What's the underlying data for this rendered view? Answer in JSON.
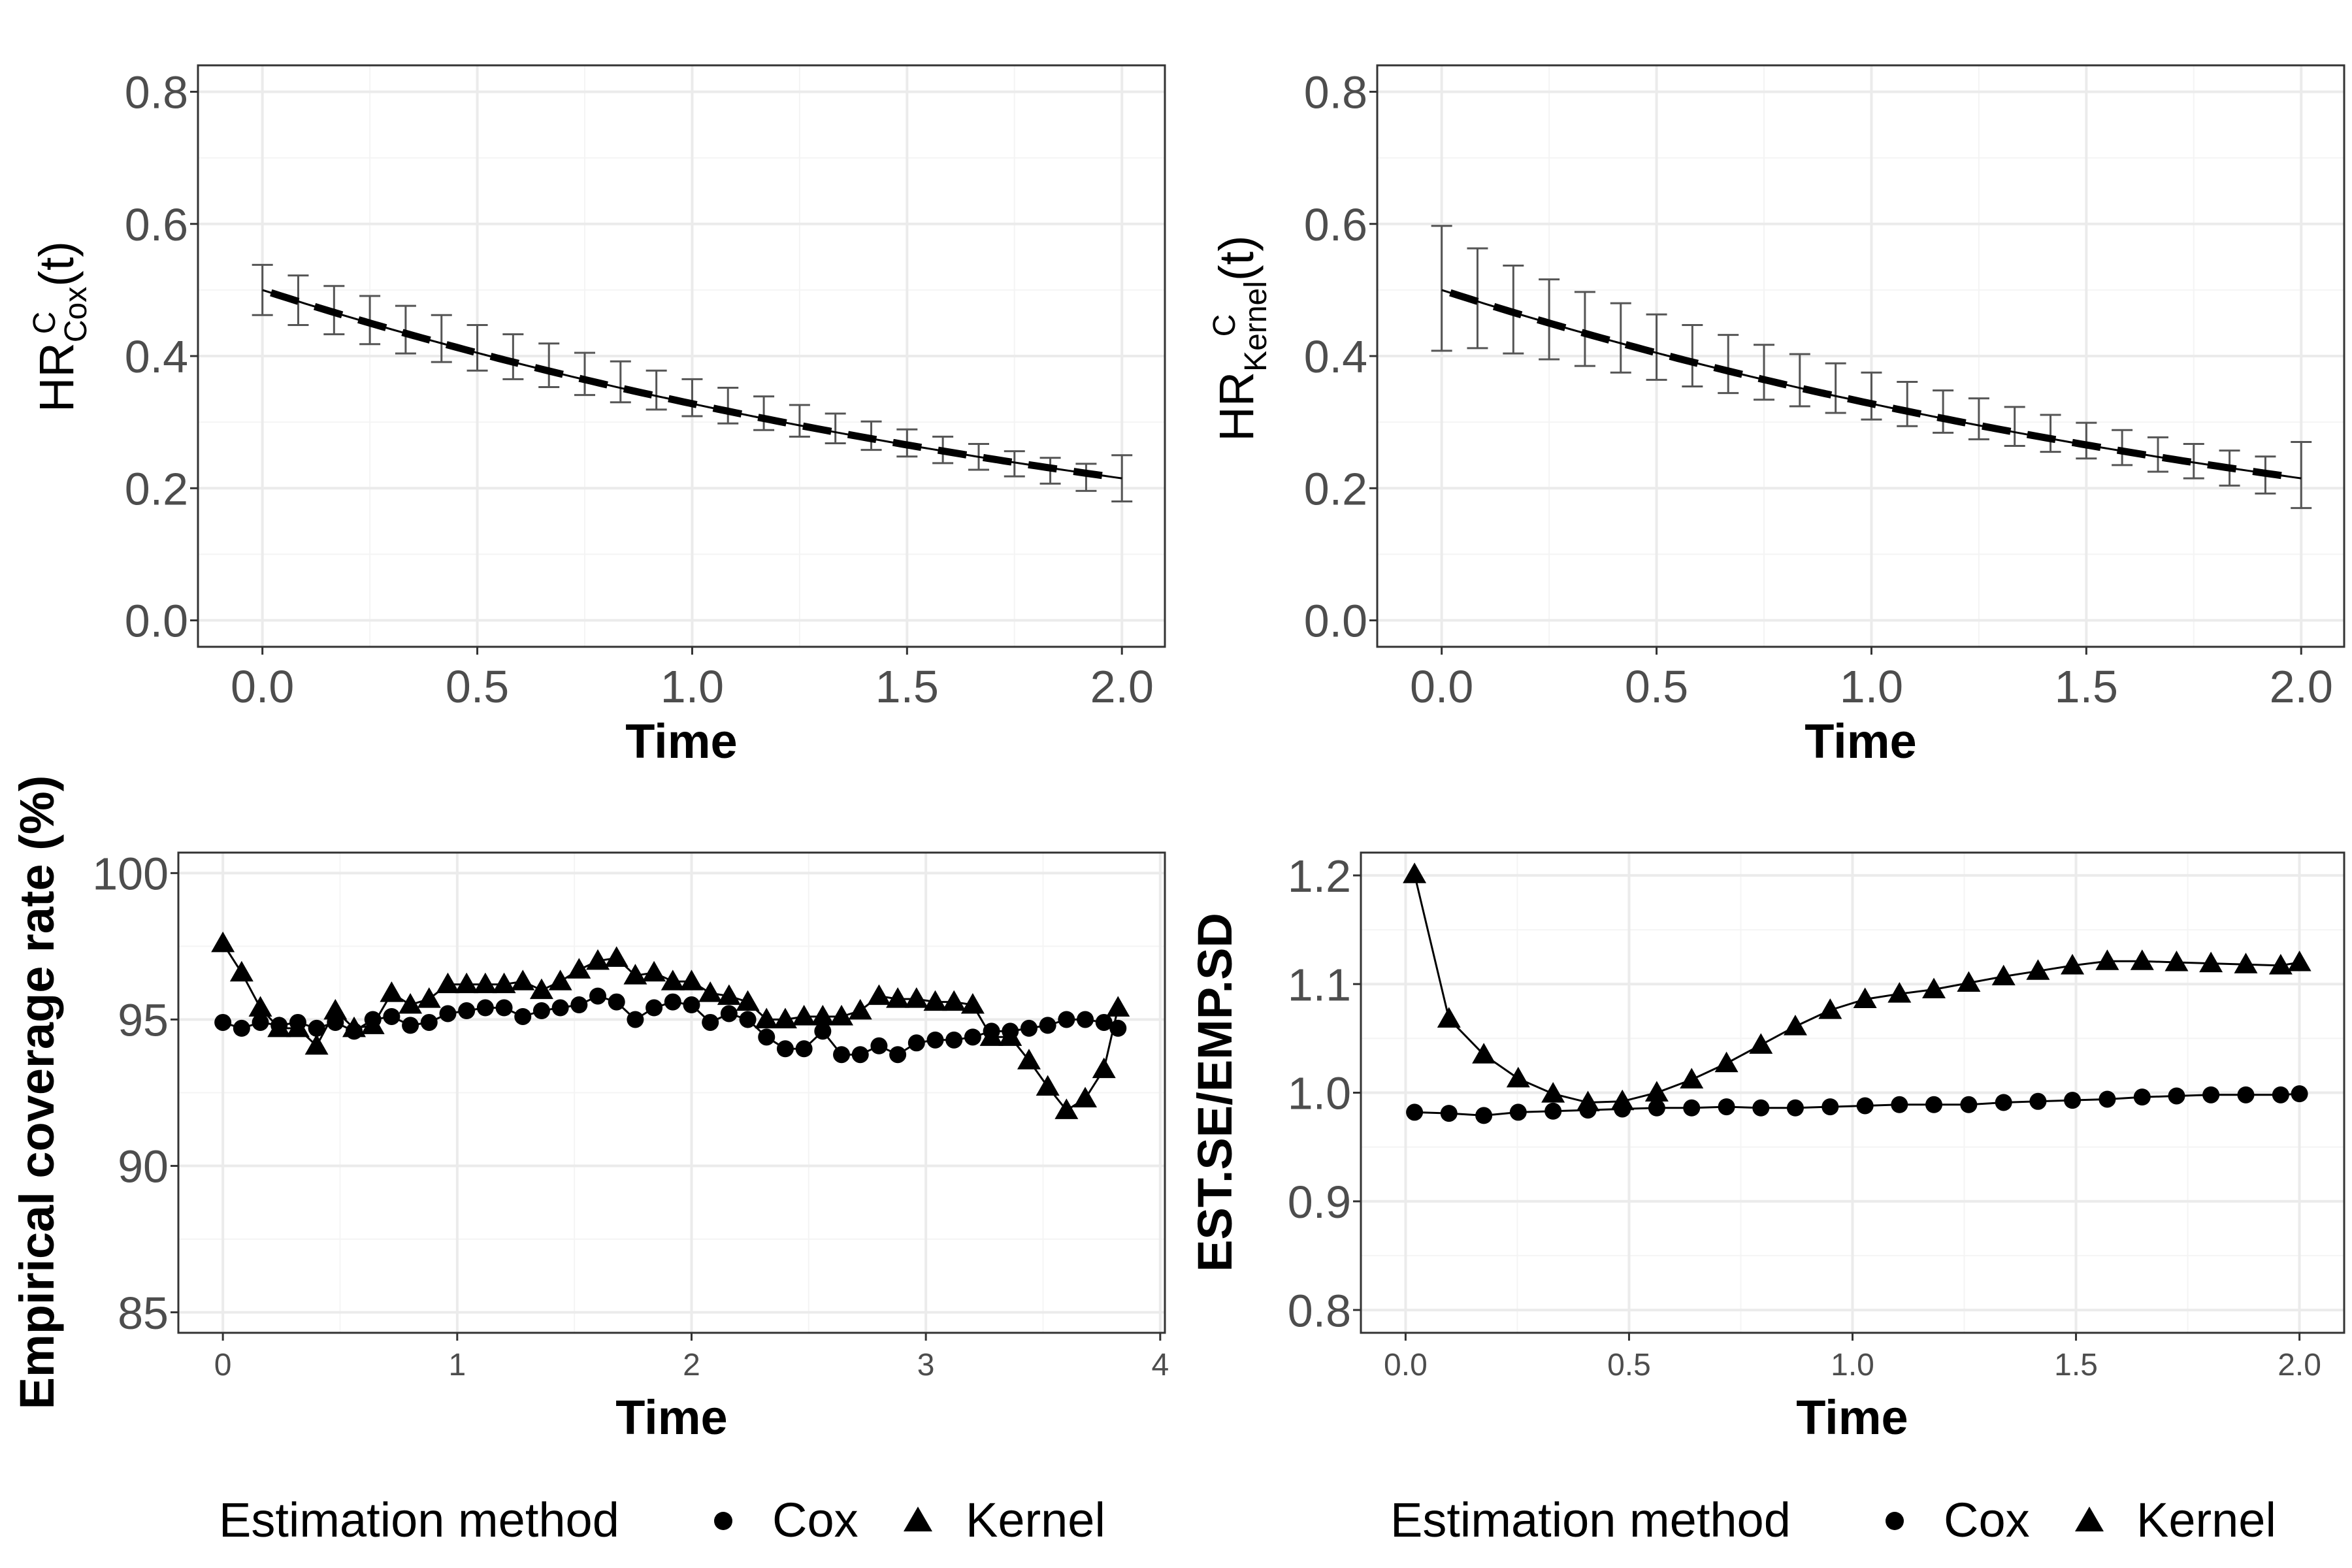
{
  "colors": {
    "grid_major": "#ebebeb",
    "grid_minor": "#f4f4f4",
    "panel_border": "#333333",
    "tick_text": "#4d4d4d",
    "ink": "#000000",
    "errorbar": "#555555"
  },
  "chart_data": [
    {
      "id": "hr-cox",
      "type": "line",
      "ylabel_main": "HR",
      "ylabel_sup": "C",
      "ylabel_sub": "Cox",
      "ylabel_tail": "(t)",
      "xlabel": "Time",
      "xlim": [
        -0.15,
        2.1
      ],
      "ylim": [
        -0.04,
        0.84
      ],
      "x_ticks": [
        0.0,
        0.5,
        1.0,
        1.5,
        2.0
      ],
      "x_tick_labels": [
        "0.0",
        "0.5",
        "1.0",
        "1.5",
        "2.0"
      ],
      "y_ticks": [
        0.0,
        0.2,
        0.4,
        0.6,
        0.8
      ],
      "y_tick_labels": [
        "0.0",
        "0.2",
        "0.4",
        "0.6",
        "0.8"
      ],
      "true_curve": {
        "name": "true",
        "start": 0.5,
        "end": 0.215,
        "x_range": [
          0.0,
          2.0
        ]
      },
      "estimate_curve": {
        "name": "estimate",
        "start": 0.5,
        "end": 0.215,
        "x_range": [
          0.02,
          1.98
        ]
      },
      "error_bars": {
        "x": [
          0.0,
          0.0833,
          0.1667,
          0.25,
          0.3333,
          0.4167,
          0.5,
          0.5833,
          0.6667,
          0.75,
          0.8333,
          0.9167,
          1.0,
          1.0833,
          1.1667,
          1.25,
          1.3333,
          1.4167,
          1.5,
          1.5833,
          1.6667,
          1.75,
          1.8333,
          1.9167,
          2.0
        ],
        "lower": [
          0.462,
          0.447,
          0.433,
          0.418,
          0.404,
          0.391,
          0.378,
          0.365,
          0.353,
          0.341,
          0.33,
          0.319,
          0.309,
          0.298,
          0.288,
          0.278,
          0.268,
          0.258,
          0.248,
          0.238,
          0.228,
          0.218,
          0.207,
          0.196,
          0.18
        ],
        "upper": [
          0.538,
          0.522,
          0.506,
          0.491,
          0.476,
          0.462,
          0.447,
          0.433,
          0.419,
          0.405,
          0.392,
          0.378,
          0.365,
          0.352,
          0.339,
          0.326,
          0.313,
          0.301,
          0.289,
          0.278,
          0.267,
          0.256,
          0.246,
          0.237,
          0.25
        ]
      }
    },
    {
      "id": "hr-kernel",
      "type": "line",
      "ylabel_main": "HR",
      "ylabel_sup": "C",
      "ylabel_sub": "Kernel",
      "ylabel_tail": "(t)",
      "xlabel": "Time",
      "xlim": [
        -0.15,
        2.1
      ],
      "ylim": [
        -0.04,
        0.84
      ],
      "x_ticks": [
        0.0,
        0.5,
        1.0,
        1.5,
        2.0
      ],
      "x_tick_labels": [
        "0.0",
        "0.5",
        "1.0",
        "1.5",
        "2.0"
      ],
      "y_ticks": [
        0.0,
        0.2,
        0.4,
        0.6,
        0.8
      ],
      "y_tick_labels": [
        "0.0",
        "0.2",
        "0.4",
        "0.6",
        "0.8"
      ],
      "true_curve": {
        "name": "true",
        "start": 0.5,
        "end": 0.215,
        "x_range": [
          0.0,
          2.0
        ]
      },
      "estimate_curve": {
        "name": "estimate",
        "start": 0.5,
        "end": 0.215,
        "x_range": [
          0.02,
          1.98
        ]
      },
      "error_bars": {
        "x": [
          0.0,
          0.0833,
          0.1667,
          0.25,
          0.3333,
          0.4167,
          0.5,
          0.5833,
          0.6667,
          0.75,
          0.8333,
          0.9167,
          1.0,
          1.0833,
          1.1667,
          1.25,
          1.3333,
          1.4167,
          1.5,
          1.5833,
          1.6667,
          1.75,
          1.8333,
          1.9167,
          2.0
        ],
        "lower": [
          0.408,
          0.412,
          0.404,
          0.395,
          0.385,
          0.375,
          0.364,
          0.354,
          0.344,
          0.334,
          0.324,
          0.314,
          0.304,
          0.294,
          0.284,
          0.274,
          0.264,
          0.255,
          0.245,
          0.235,
          0.225,
          0.215,
          0.204,
          0.192,
          0.17
        ],
        "upper": [
          0.597,
          0.563,
          0.537,
          0.516,
          0.497,
          0.48,
          0.463,
          0.447,
          0.432,
          0.417,
          0.403,
          0.389,
          0.375,
          0.361,
          0.348,
          0.336,
          0.323,
          0.311,
          0.299,
          0.288,
          0.277,
          0.267,
          0.257,
          0.248,
          0.27
        ]
      }
    },
    {
      "id": "coverage",
      "type": "line",
      "ylabel": "Empirical coverage rate (%)",
      "xlabel": "Time",
      "xlim": [
        -0.19,
        4.02
      ],
      "ylim": [
        84.3,
        100.7
      ],
      "x_ticks": [
        0,
        1,
        2,
        3,
        4
      ],
      "x_tick_labels": [
        "0",
        "1",
        "2",
        "3",
        "4"
      ],
      "y_ticks": [
        85,
        90,
        95,
        100
      ],
      "y_tick_labels": [
        "85",
        "90",
        "95",
        "100"
      ],
      "series": [
        {
          "name": "Cox",
          "marker": "circle",
          "x": [
            0.0,
            0.08,
            0.16,
            0.24,
            0.32,
            0.4,
            0.48,
            0.56,
            0.64,
            0.72,
            0.8,
            0.88,
            0.96,
            1.04,
            1.12,
            1.2,
            1.28,
            1.36,
            1.44,
            1.52,
            1.6,
            1.68,
            1.76,
            1.84,
            1.92,
            2.0,
            2.08,
            2.16,
            2.24,
            2.32,
            2.4,
            2.48,
            2.56,
            2.64,
            2.72,
            2.8,
            2.88,
            2.96,
            3.04,
            3.12,
            3.2,
            3.28,
            3.36,
            3.44,
            3.52,
            3.6,
            3.68,
            3.76,
            3.82
          ],
          "y": [
            94.9,
            94.7,
            94.9,
            94.8,
            94.9,
            94.7,
            94.9,
            94.6,
            95.0,
            95.1,
            94.8,
            94.9,
            95.2,
            95.3,
            95.4,
            95.4,
            95.1,
            95.3,
            95.4,
            95.5,
            95.8,
            95.6,
            95.0,
            95.4,
            95.6,
            95.5,
            94.9,
            95.2,
            95.0,
            94.4,
            94.0,
            94.0,
            94.6,
            93.8,
            93.8,
            94.1,
            93.8,
            94.2,
            94.3,
            94.3,
            94.4,
            94.6,
            94.6,
            94.7,
            94.8,
            95.0,
            95.0,
            94.9,
            94.7
          ]
        },
        {
          "name": "Kernel",
          "marker": "triangle",
          "x": [
            0.0,
            0.08,
            0.16,
            0.24,
            0.32,
            0.4,
            0.48,
            0.56,
            0.64,
            0.72,
            0.8,
            0.88,
            0.96,
            1.04,
            1.12,
            1.2,
            1.28,
            1.36,
            1.44,
            1.52,
            1.6,
            1.68,
            1.76,
            1.84,
            1.92,
            2.0,
            2.08,
            2.16,
            2.24,
            2.32,
            2.4,
            2.48,
            2.56,
            2.64,
            2.72,
            2.8,
            2.88,
            2.96,
            3.04,
            3.12,
            3.2,
            3.28,
            3.36,
            3.44,
            3.52,
            3.6,
            3.68,
            3.76,
            3.82
          ],
          "y": [
            97.6,
            96.6,
            95.4,
            94.7,
            94.7,
            94.1,
            95.3,
            94.7,
            94.8,
            95.9,
            95.5,
            95.7,
            96.2,
            96.2,
            96.2,
            96.2,
            96.3,
            96.0,
            96.3,
            96.7,
            97.0,
            97.1,
            96.5,
            96.6,
            96.3,
            96.3,
            95.9,
            95.8,
            95.6,
            95.0,
            95.0,
            95.1,
            95.1,
            95.1,
            95.3,
            95.8,
            95.7,
            95.7,
            95.6,
            95.6,
            95.5,
            94.4,
            94.4,
            93.6,
            92.7,
            91.9,
            92.3,
            93.3,
            95.4
          ]
        }
      ]
    },
    {
      "id": "se-ratio",
      "type": "line",
      "ylabel": "EST.SE/EMP.SD",
      "xlabel": "Time",
      "xlim": [
        -0.1,
        2.1
      ],
      "ylim": [
        0.779,
        1.221
      ],
      "x_ticks": [
        0.0,
        0.5,
        1.0,
        1.5,
        2.0
      ],
      "x_tick_labels": [
        "0.0",
        "0.5",
        "1.0",
        "1.5",
        "2.0"
      ],
      "y_ticks": [
        0.8,
        0.9,
        1.0,
        1.1,
        1.2
      ],
      "y_tick_labels": [
        "0.8",
        "0.9",
        "1.0",
        "1.1",
        "1.2"
      ],
      "series": [
        {
          "name": "Cox",
          "marker": "circle",
          "x": [
            0.02,
            0.097,
            0.175,
            0.252,
            0.33,
            0.408,
            0.485,
            0.562,
            0.64,
            0.718,
            0.795,
            0.872,
            0.95,
            1.028,
            1.105,
            1.182,
            1.26,
            1.338,
            1.415,
            1.492,
            1.57,
            1.648,
            1.725,
            1.802,
            1.88,
            1.958,
            2.0
          ],
          "y": [
            0.982,
            0.981,
            0.979,
            0.982,
            0.983,
            0.984,
            0.985,
            0.986,
            0.986,
            0.987,
            0.986,
            0.986,
            0.987,
            0.988,
            0.989,
            0.989,
            0.989,
            0.991,
            0.992,
            0.993,
            0.994,
            0.996,
            0.997,
            0.998,
            0.998,
            0.998,
            0.999
          ]
        },
        {
          "name": "Kernel",
          "marker": "triangle",
          "x": [
            0.02,
            0.097,
            0.175,
            0.252,
            0.33,
            0.408,
            0.485,
            0.562,
            0.64,
            0.718,
            0.795,
            0.872,
            0.95,
            1.028,
            1.105,
            1.182,
            1.26,
            1.338,
            1.415,
            1.492,
            1.57,
            1.648,
            1.725,
            1.802,
            1.88,
            1.958,
            2.0
          ],
          "y": [
            1.201,
            1.068,
            1.035,
            1.013,
            0.999,
            0.991,
            0.992,
            1.0,
            1.012,
            1.027,
            1.044,
            1.061,
            1.076,
            1.086,
            1.091,
            1.095,
            1.101,
            1.107,
            1.112,
            1.117,
            1.121,
            1.121,
            1.12,
            1.119,
            1.118,
            1.117,
            1.12
          ]
        }
      ]
    }
  ],
  "legends": [
    {
      "id": "legend-left",
      "title": "Estimation method",
      "items": [
        {
          "label": "Cox",
          "marker": "circle"
        },
        {
          "label": "Kernel",
          "marker": "triangle"
        }
      ]
    },
    {
      "id": "legend-right",
      "title": "Estimation method",
      "items": [
        {
          "label": "Cox",
          "marker": "circle"
        },
        {
          "label": "Kernel",
          "marker": "triangle"
        }
      ]
    }
  ]
}
